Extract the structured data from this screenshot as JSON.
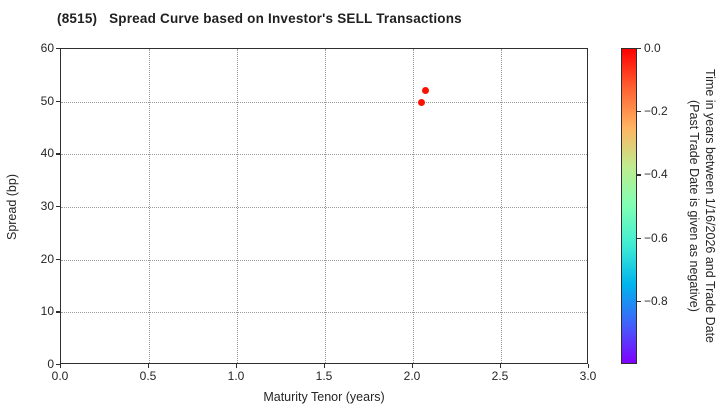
{
  "title": "(8515)   Spread Curve based on Investor's SELL Transactions",
  "chart_data": {
    "type": "scatter",
    "title": "(8515)   Spread Curve based on Investor's SELL Transactions",
    "xlabel": "Maturity Tenor (years)",
    "ylabel": "Spread (bp)",
    "xlim": [
      0.0,
      3.0
    ],
    "ylim": [
      0,
      60
    ],
    "grid": true,
    "grid_style": "dotted",
    "xticks": {
      "values": [
        0.0,
        0.5,
        1.0,
        1.5,
        2.0,
        2.5,
        3.0
      ],
      "labels": [
        "0.0",
        "0.5",
        "1.0",
        "1.5",
        "2.0",
        "2.5",
        "3.0"
      ]
    },
    "yticks": {
      "values": [
        0,
        10,
        20,
        30,
        40,
        50,
        60
      ],
      "labels": [
        "0",
        "10",
        "20",
        "30",
        "40",
        "50",
        "60"
      ]
    },
    "series": [
      {
        "name": "SELL transactions",
        "points": [
          {
            "x": 2.07,
            "y": 52.2,
            "time_value": 0.0,
            "color": "#f71300"
          },
          {
            "x": 2.05,
            "y": 49.9,
            "time_value": 0.0,
            "color": "#f71300"
          }
        ]
      }
    ],
    "colorbar": {
      "label_line1": "Time in years between 1/16/2026 and Trade Date",
      "label_line2": "(Past Trade Date is given as negative)",
      "range": [
        0.0,
        -1.0
      ],
      "ticks": {
        "values": [
          0.0,
          -0.2,
          -0.4,
          -0.6,
          -0.8
        ],
        "labels": [
          "0.0",
          "−0.2",
          "−0.4",
          "−0.6",
          "−0.8"
        ]
      },
      "colormap": "rainbow",
      "gradient_stops": [
        "#ff0000",
        "#ff6232",
        "#ffb462",
        "#bfec8e",
        "#80ffb4",
        "#40ecd4",
        "#00b4ec",
        "#4062fa",
        "#8000ff"
      ]
    }
  }
}
